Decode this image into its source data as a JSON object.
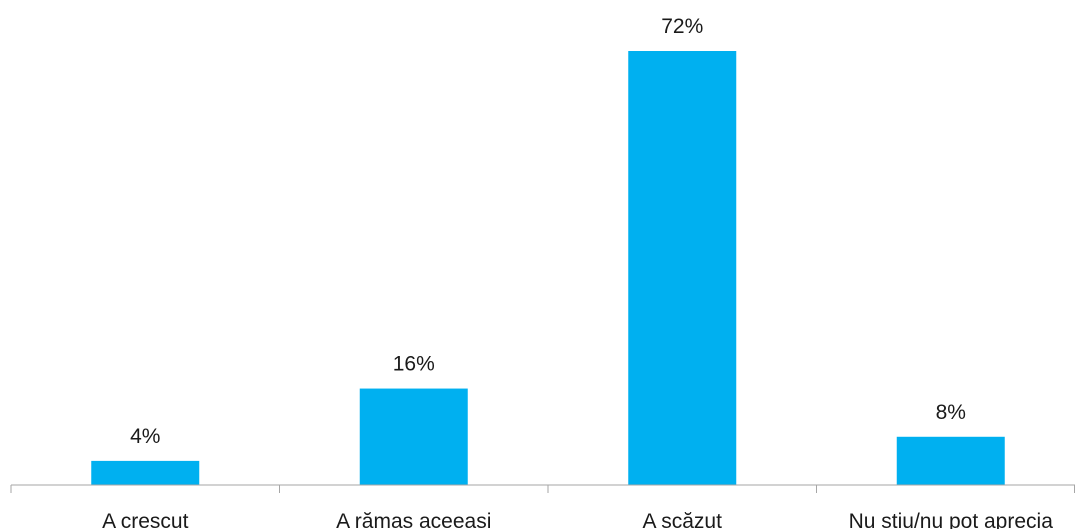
{
  "chart_data": {
    "type": "bar",
    "categories": [
      "A crescut",
      "A rămas aceeași",
      "A scăzut",
      "Nu știu/nu pot aprecia"
    ],
    "values": [
      4,
      16,
      72,
      8
    ],
    "value_labels": [
      "4%",
      "16%",
      "72%",
      "8%"
    ],
    "unit": "%",
    "bar_color": "#00B0F0",
    "axis_color": "#A6A6A6",
    "text_color": "#1A1A1A",
    "ylim": [
      0,
      72
    ],
    "gridlines": false,
    "legend": "none",
    "title": "",
    "xlabel": "",
    "ylabel": ""
  }
}
